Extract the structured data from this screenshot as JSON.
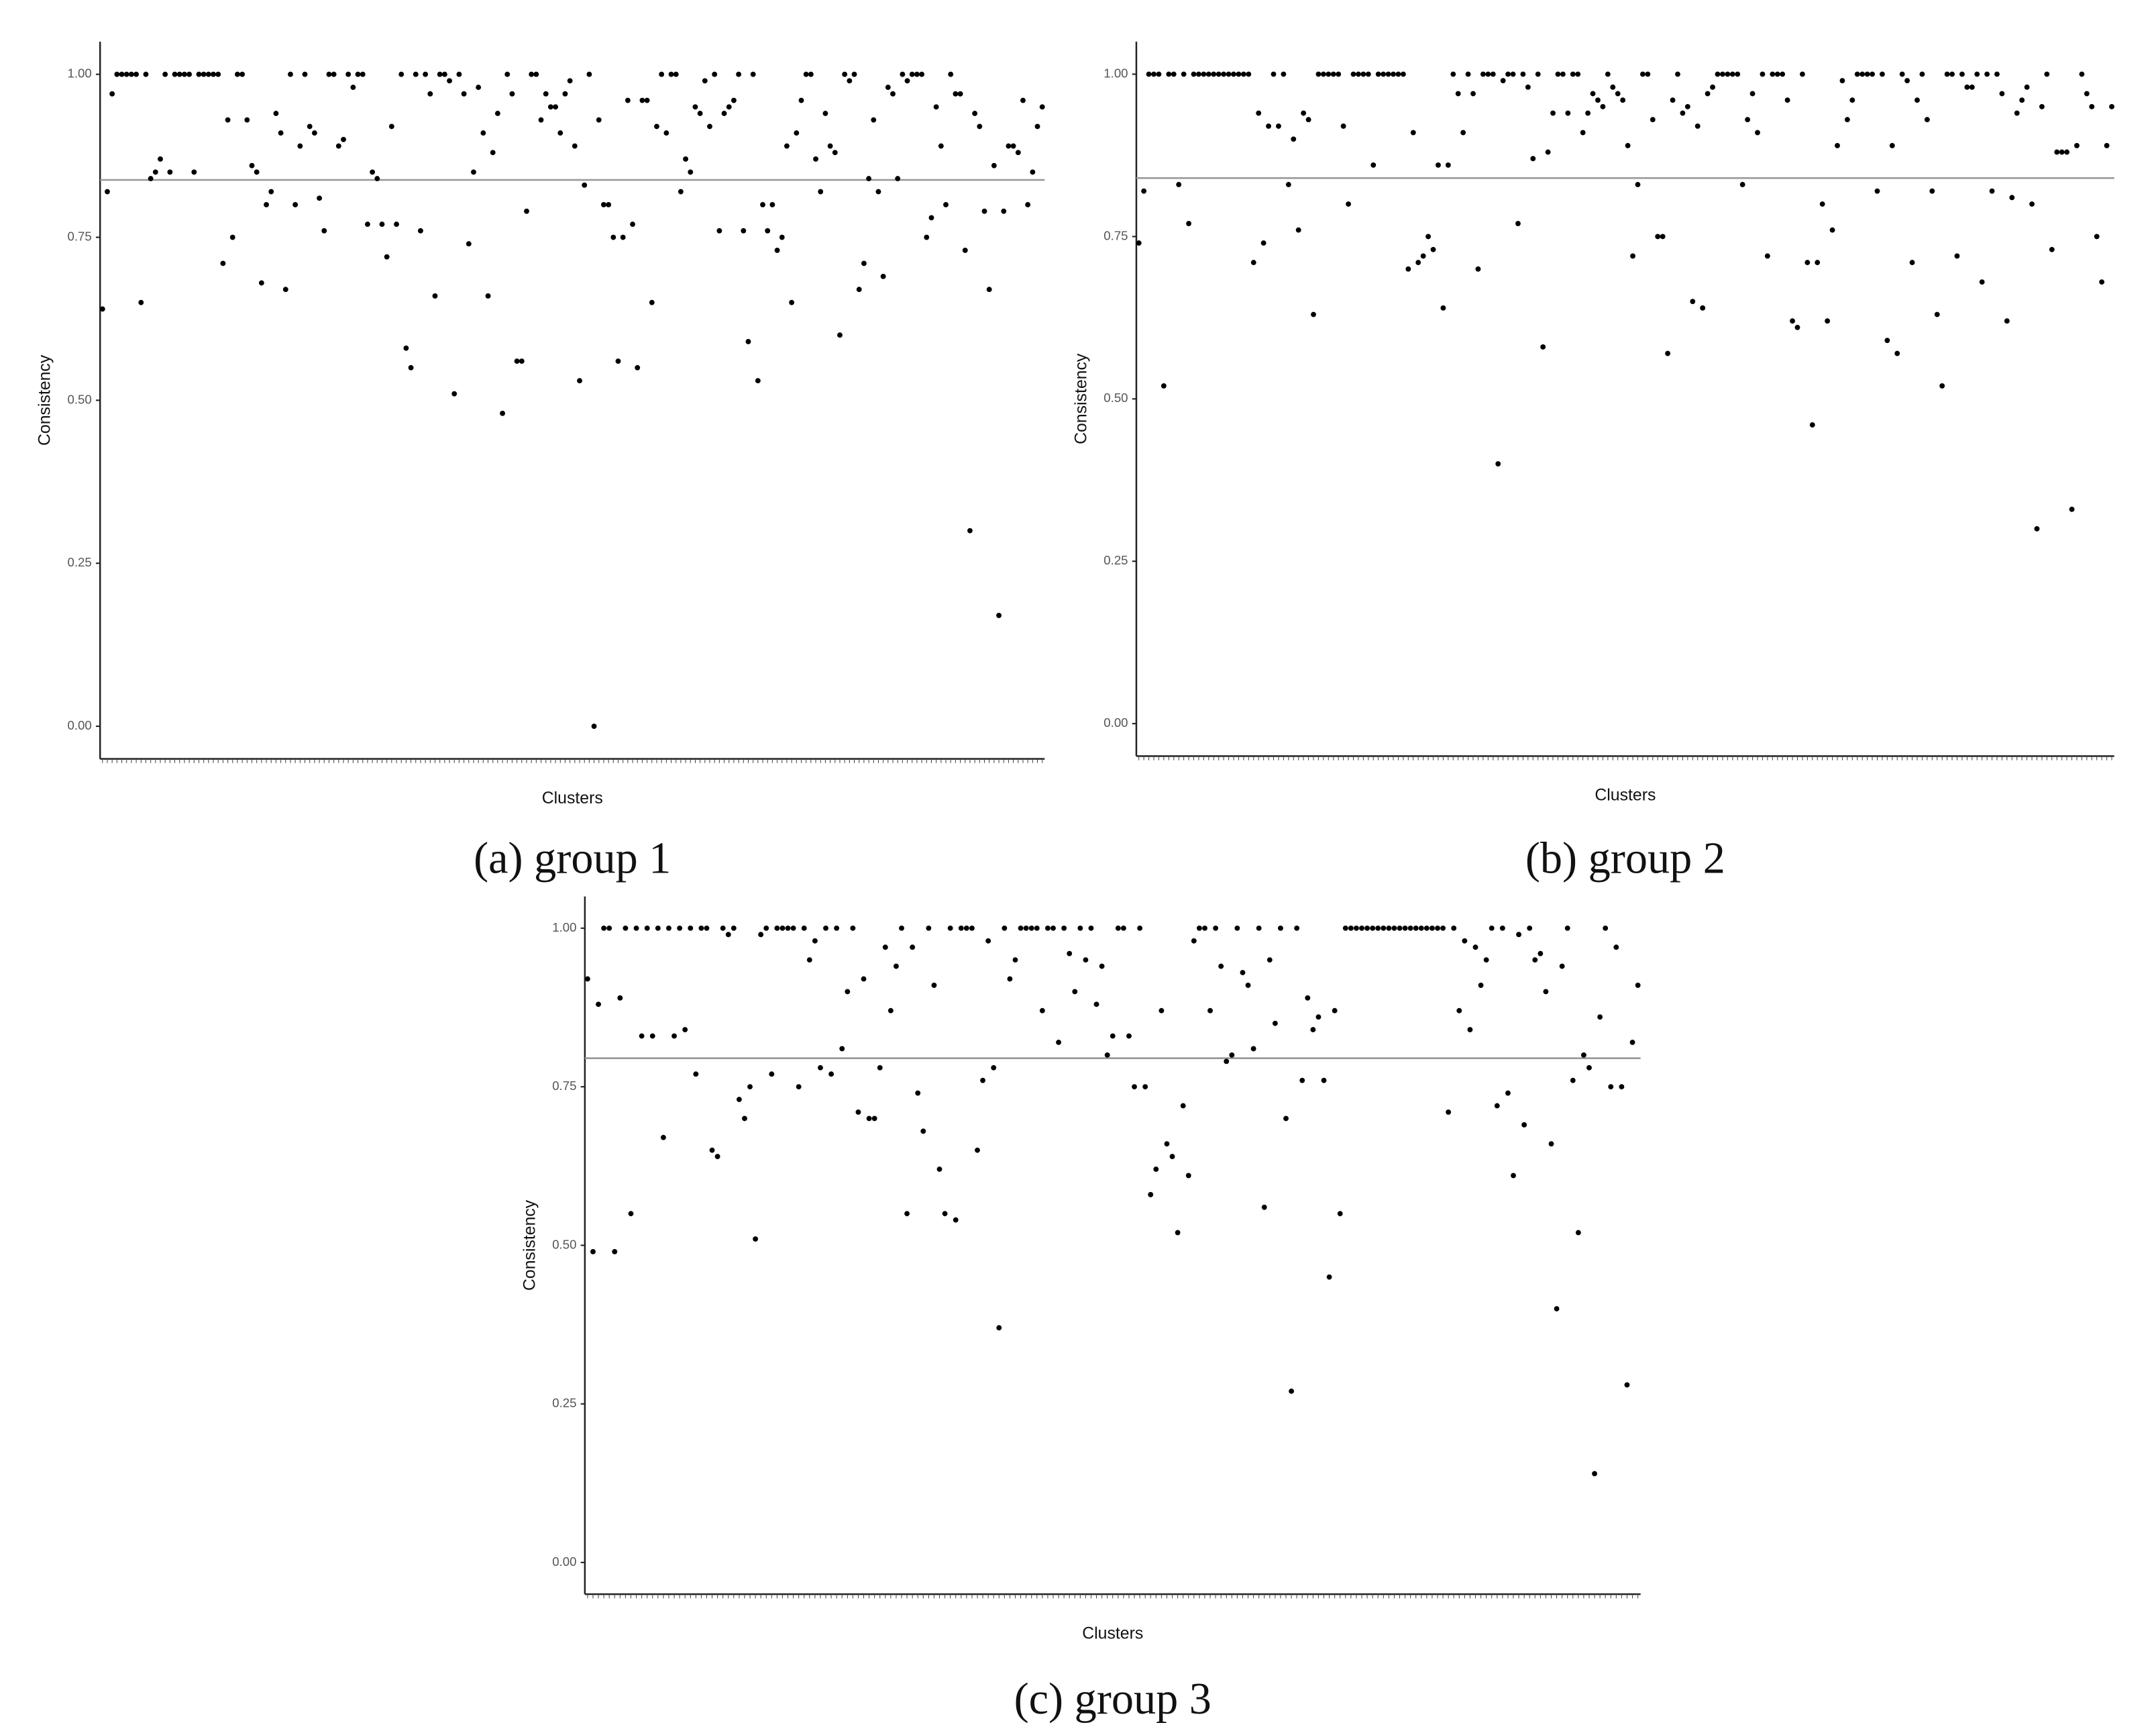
{
  "chart_data": [
    {
      "type": "scatter",
      "caption": "(a) group 1",
      "xlabel": "Clusters",
      "ylabel": "Consistency",
      "color": "#000000",
      "hline": 0.838,
      "hline_color": "#9a9a9a",
      "ylim": [
        -0.05,
        1.05
      ],
      "yticks": [
        {
          "value": 0,
          "label": "0.00"
        },
        {
          "value": 0.25,
          "label": "0.25"
        },
        {
          "value": 0.5,
          "label": "0.50"
        },
        {
          "value": 0.75,
          "label": "0.75"
        },
        {
          "value": 1,
          "label": "1.00"
        }
      ],
      "values": [
        0.64,
        0.82,
        0.97,
        1,
        1,
        1,
        1,
        1,
        0.65,
        1,
        0.84,
        0.85,
        0.87,
        1,
        0.85,
        1,
        1,
        1,
        1,
        0.85,
        1,
        1,
        1,
        1,
        1,
        0.71,
        0.93,
        0.75,
        1,
        1,
        0.93,
        0.86,
        0.85,
        0.68,
        0.8,
        0.82,
        0.94,
        0.91,
        0.67,
        1,
        0.8,
        0.89,
        1,
        0.92,
        0.91,
        0.81,
        0.76,
        1,
        1,
        0.89,
        0.9,
        1,
        0.98,
        1,
        1,
        0.77,
        0.85,
        0.84,
        0.77,
        0.72,
        0.92,
        0.77,
        1,
        0.58,
        0.55,
        1,
        0.76,
        1,
        0.97,
        0.66,
        1,
        1,
        0.99,
        0.51,
        1,
        0.97,
        0.74,
        0.85,
        0.98,
        0.91,
        0.66,
        0.88,
        0.94,
        0.48,
        1,
        0.97,
        0.56,
        0.56,
        0.79,
        1,
        1,
        0.93,
        0.97,
        0.95,
        0.95,
        0.91,
        0.97,
        0.99,
        0.89,
        0.53,
        0.83,
        1,
        0,
        0.93,
        0.8,
        0.8,
        0.75,
        0.56,
        0.75,
        0.96,
        0.77,
        0.55,
        0.96,
        0.96,
        0.65,
        0.92,
        1,
        0.91,
        1,
        1,
        0.82,
        0.87,
        0.85,
        0.95,
        0.94,
        0.99,
        0.92,
        1,
        0.76,
        0.94,
        0.95,
        0.96,
        1,
        0.76,
        0.59,
        1,
        0.53,
        0.8,
        0.76,
        0.8,
        0.73,
        0.75,
        0.89,
        0.65,
        0.91,
        0.96,
        1,
        1,
        0.87,
        0.82,
        0.94,
        0.89,
        0.88,
        0.6,
        1,
        0.99,
        1,
        0.67,
        0.71,
        0.84,
        0.93,
        0.82,
        0.69,
        0.98,
        0.97,
        0.84,
        1,
        0.99,
        1,
        1,
        1,
        0.75,
        0.78,
        0.95,
        0.89,
        0.8,
        1,
        0.97,
        0.97,
        0.73,
        0.3,
        0.94,
        0.92,
        0.79,
        0.67,
        0.86,
        0.17,
        0.79,
        0.89,
        0.89,
        0.88,
        0.96,
        0.8,
        0.85,
        0.92,
        0.95
      ]
    },
    {
      "type": "scatter",
      "caption": "(b) group 2",
      "xlabel": "Clusters",
      "ylabel": "Consistency",
      "color": "#000000",
      "hline": 0.84,
      "hline_color": "#9a9a9a",
      "ylim": [
        -0.05,
        1.05
      ],
      "yticks": [
        {
          "value": 0,
          "label": "0.00"
        },
        {
          "value": 0.25,
          "label": "0.25"
        },
        {
          "value": 0.5,
          "label": "0.50"
        },
        {
          "value": 0.75,
          "label": "0.75"
        },
        {
          "value": 1,
          "label": "1.00"
        }
      ],
      "values": [
        0.74,
        0.82,
        1,
        1,
        1,
        0.52,
        1,
        1,
        0.83,
        1,
        0.77,
        1,
        1,
        1,
        1,
        1,
        1,
        1,
        1,
        1,
        1,
        1,
        1,
        0.71,
        0.94,
        0.74,
        0.92,
        1,
        0.92,
        1,
        0.83,
        0.9,
        0.76,
        0.94,
        0.93,
        0.63,
        1,
        1,
        1,
        1,
        1,
        0.92,
        0.8,
        1,
        1,
        1,
        1,
        0.86,
        1,
        1,
        1,
        1,
        1,
        1,
        0.7,
        0.91,
        0.71,
        0.72,
        0.75,
        0.73,
        0.86,
        0.64,
        0.86,
        1,
        0.97,
        0.91,
        1,
        0.97,
        0.7,
        1,
        1,
        1,
        0.4,
        0.99,
        1,
        1,
        0.77,
        1,
        0.98,
        0.87,
        1,
        0.58,
        0.88,
        0.94,
        1,
        1,
        0.94,
        1,
        1,
        0.91,
        0.94,
        0.97,
        0.96,
        0.95,
        1,
        0.98,
        0.97,
        0.96,
        0.89,
        0.72,
        0.83,
        1,
        1,
        0.93,
        0.75,
        0.75,
        0.57,
        0.96,
        1,
        0.94,
        0.95,
        0.65,
        0.92,
        0.64,
        0.97,
        0.98,
        1,
        1,
        1,
        1,
        1,
        0.83,
        0.93,
        0.97,
        0.91,
        1,
        0.72,
        1,
        1,
        1,
        0.96,
        0.62,
        0.61,
        1,
        0.71,
        0.46,
        0.71,
        0.8,
        0.62,
        0.76,
        0.89,
        0.99,
        0.93,
        0.96,
        1,
        1,
        1,
        1,
        0.82,
        1,
        0.59,
        0.89,
        0.57,
        1,
        0.99,
        0.71,
        0.96,
        1,
        0.93,
        0.82,
        0.63,
        0.52,
        1,
        1,
        0.72,
        1,
        0.98,
        0.98,
        1,
        0.68,
        1,
        0.82,
        1,
        0.97,
        0.62,
        0.81,
        0.94,
        0.96,
        0.98,
        0.8,
        0.3,
        0.95,
        1,
        0.73,
        0.88,
        0.88,
        0.88,
        0.33,
        0.89,
        1,
        0.97,
        0.95,
        0.75,
        0.68,
        0.89,
        0.95
      ]
    },
    {
      "type": "scatter",
      "caption": "(c) group 3",
      "xlabel": "Clusters",
      "ylabel": "Consistency",
      "color": "#000000",
      "hline": 0.795,
      "hline_color": "#9a9a9a",
      "ylim": [
        -0.05,
        1.05
      ],
      "yticks": [
        {
          "value": 0,
          "label": "0.00"
        },
        {
          "value": 0.25,
          "label": "0.25"
        },
        {
          "value": 0.5,
          "label": "0.50"
        },
        {
          "value": 0.75,
          "label": "0.75"
        },
        {
          "value": 1,
          "label": "1.00"
        }
      ],
      "values": [
        0.92,
        0.49,
        0.88,
        1,
        1,
        0.49,
        0.89,
        1,
        0.55,
        1,
        0.83,
        1,
        0.83,
        1,
        0.67,
        1,
        0.83,
        1,
        0.84,
        1,
        0.77,
        1,
        1,
        0.65,
        0.64,
        1,
        0.99,
        1,
        0.73,
        0.7,
        0.75,
        0.51,
        0.99,
        1,
        0.77,
        1,
        1,
        1,
        1,
        0.75,
        1,
        0.95,
        0.98,
        0.78,
        1,
        0.77,
        1,
        0.81,
        0.9,
        1,
        0.71,
        0.92,
        0.7,
        0.7,
        0.78,
        0.97,
        0.87,
        0.94,
        1,
        0.55,
        0.97,
        0.74,
        0.68,
        1,
        0.91,
        0.62,
        0.55,
        1,
        0.54,
        1,
        1,
        1,
        0.65,
        0.76,
        0.98,
        0.78,
        0.37,
        1,
        0.92,
        0.95,
        1,
        1,
        1,
        1,
        0.87,
        1,
        1,
        0.82,
        1,
        0.96,
        0.9,
        1,
        0.95,
        1,
        0.88,
        0.94,
        0.8,
        0.83,
        1,
        1,
        0.83,
        0.75,
        1,
        0.75,
        0.58,
        0.62,
        0.87,
        0.66,
        0.64,
        0.52,
        0.72,
        0.61,
        0.98,
        1,
        1,
        0.87,
        1,
        0.94,
        0.79,
        0.8,
        1,
        0.93,
        0.91,
        0.81,
        1,
        0.56,
        0.95,
        0.85,
        1,
        0.7,
        0.27,
        1,
        0.76,
        0.89,
        0.84,
        0.86,
        0.76,
        0.45,
        0.87,
        0.55,
        1,
        1,
        1,
        1,
        1,
        1,
        1,
        1,
        1,
        1,
        1,
        1,
        1,
        1,
        1,
        1,
        1,
        1,
        1,
        0.71,
        1,
        0.87,
        0.98,
        0.84,
        0.97,
        0.91,
        0.95,
        1,
        0.72,
        1,
        0.74,
        0.61,
        0.99,
        0.69,
        1,
        0.95,
        0.96,
        0.9,
        0.66,
        0.4,
        0.94,
        1,
        0.76,
        0.52,
        0.8,
        0.78,
        0.14,
        0.86,
        1,
        0.75,
        0.97,
        0.75,
        0.28,
        0.82,
        0.91
      ]
    }
  ]
}
